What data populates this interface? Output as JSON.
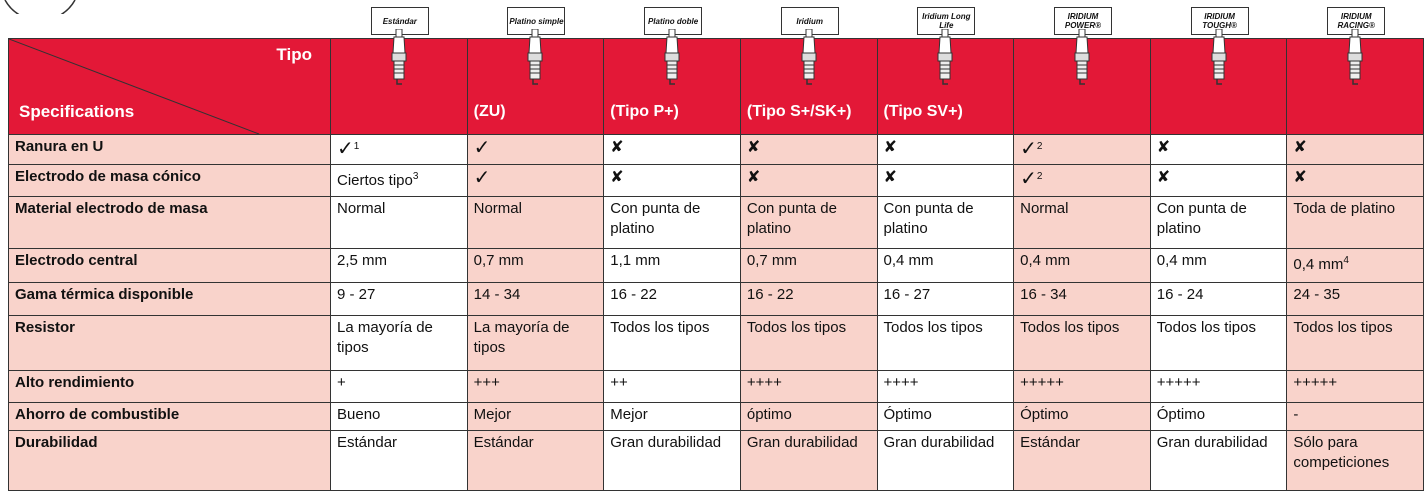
{
  "header": {
    "type_label": "Tipo",
    "spec_label": "Specifications"
  },
  "columns": [
    {
      "name": "Estándar"
    },
    {
      "name": "Platino simple",
      "code": "(ZU)"
    },
    {
      "name": "Platino doble",
      "code": "(Tipo P+)"
    },
    {
      "name": "Iridium",
      "code": "(Tipo S+/SK+)"
    },
    {
      "name": "Iridium Long Life",
      "code": "(Tipo SV+)"
    },
    {
      "name": "IRIDIUM POWER®"
    },
    {
      "name": "IRIDIUM TOUGH®"
    },
    {
      "name": "IRIDIUM RACING®"
    }
  ],
  "rows": [
    {
      "label": "Ranura en U",
      "cells": [
        {
          "text": "✓",
          "sup": "1"
        },
        "✓",
        "✘",
        "✘",
        "✘",
        {
          "text": "✓",
          "sup": "2"
        },
        "✘",
        "✘"
      ]
    },
    {
      "label": "Electrodo de masa cónico",
      "cells": [
        {
          "text": "Ciertos tipo",
          "sup": "3"
        },
        "✓",
        "✘",
        "✘",
        "✘",
        {
          "text": "✓",
          "sup": "2"
        },
        "✘",
        "✘"
      ]
    },
    {
      "label": "Material electrodo de masa",
      "cells": [
        "Normal",
        "Normal",
        "Con punta de platino",
        "Con punta de platino",
        "Con punta de platino",
        "Normal",
        "Con punta de platino",
        "Toda de platino"
      ]
    },
    {
      "label": "Electrodo central",
      "cells": [
        "2,5 mm",
        "0,7 mm",
        "1,1 mm",
        "0,7 mm",
        "0,4 mm",
        "0,4 mm",
        "0,4 mm",
        {
          "text": "0,4 mm",
          "sup": "4"
        }
      ]
    },
    {
      "label": "Gama térmica disponible",
      "cells": [
        "9 - 27",
        "14 - 34",
        "16 - 22",
        "16 - 22",
        "16 - 27",
        "16 - 34",
        "16 - 24",
        "24 - 35"
      ]
    },
    {
      "label": "Resistor",
      "cells": [
        "La mayoría de tipos",
        "La mayoría de tipos",
        "Todos los tipos",
        "Todos los tipos",
        "Todos los tipos",
        "Todos los tipos",
        "Todos los tipos",
        "Todos los tipos"
      ]
    },
    {
      "label": "Alto rendimiento",
      "cells": [
        "+",
        "+++",
        "++",
        "++++",
        "++++",
        "+++++",
        "+++++",
        "+++++"
      ]
    },
    {
      "label": "Ahorro de combustible",
      "cells": [
        "Bueno",
        "Mejor",
        "Mejor",
        "óptimo",
        "Óptimo",
        "Óptimo",
        "Óptimo",
        "-"
      ]
    },
    {
      "label": "Durabilidad",
      "cells": [
        "Estándar",
        "Estándar",
        "Gran durabilidad",
        "Gran durabilidad",
        "Gran durabilidad",
        "Estándar",
        "Gran durabilidad",
        "Sólo para competiciones"
      ]
    }
  ]
}
